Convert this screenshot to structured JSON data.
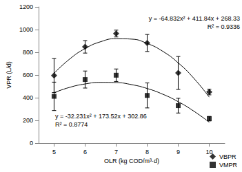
{
  "chart_data": {
    "type": "scatter",
    "x_label": "OLR (kg COD/m³·d)",
    "y_label": "VPR (L/d)",
    "xlim": [
      4.5,
      10.5
    ],
    "xticks": [
      5,
      6,
      7,
      8,
      9,
      10
    ],
    "ylim": [
      0,
      1200
    ],
    "yticks": [
      0,
      200,
      400,
      600,
      800,
      1000,
      1200
    ],
    "grid": false,
    "legend": "lower right",
    "x": [
      5,
      6,
      7,
      8,
      9,
      10
    ],
    "series": [
      {
        "name": "VBPR",
        "color": "#000000",
        "marker": "diamond",
        "values": [
          595,
          848,
          965,
          882,
          618,
          450
        ],
        "errors": [
          150,
          55,
          30,
          75,
          145,
          25
        ],
        "trend": {
          "x": [
            5,
            5.5,
            6,
            6.5,
            7,
            7.5,
            8,
            8.5,
            9,
            9.5,
            10
          ],
          "values": [
            615,
            740,
            833,
            893,
            920,
            916,
            878,
            809,
            707,
            572,
            405
          ],
          "equation": "y = -64.832x² + 411.84x + 268.33",
          "r_squared": "R² = 0.9336"
        }
      },
      {
        "name": "VMPR",
        "color": "#000000",
        "marker": "square",
        "values": [
          412,
          560,
          598,
          420,
          330,
          215
        ],
        "errors": [
          125,
          75,
          55,
          110,
          65,
          20
        ],
        "trend": {
          "x": [
            5,
            5.5,
            6,
            6.5,
            7,
            7.5,
            8,
            8.5,
            9,
            9.5,
            10
          ],
          "values": [
            444,
            491,
            521,
            535,
            533,
            515,
            481,
            431,
            365,
            282,
            184
          ],
          "equation": "y = -32.231x² + 173.52x + 302.86",
          "r_squared": "R² = 0.8774"
        }
      }
    ]
  }
}
